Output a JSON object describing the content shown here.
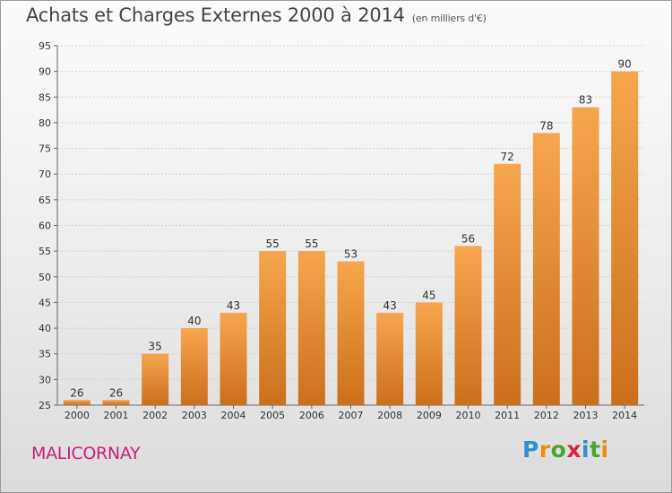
{
  "title": "Achats et Charges Externes 2000 à 2014",
  "subtitle": "(en milliers d'€)",
  "commune": "MALICORNAY",
  "logo": {
    "text": "Proxiti",
    "letters": [
      "P",
      "r",
      "o",
      "x",
      "i",
      "t",
      "i"
    ],
    "colors": [
      "#2f8fd4",
      "#f08a10",
      "#4aa52e",
      "#d6283c",
      "#2f8fd4",
      "#4aa52e",
      "#f08a10"
    ]
  },
  "colors": {
    "bar_top": "#f6a64e",
    "bar_bottom": "#cc6f1c",
    "title": "#444444",
    "commune": "#cc1f7a"
  },
  "chart_data": {
    "type": "bar",
    "categories": [
      "2000",
      "2001",
      "2002",
      "2003",
      "2004",
      "2005",
      "2006",
      "2007",
      "2008",
      "2009",
      "2010",
      "2011",
      "2012",
      "2013",
      "2014"
    ],
    "values": [
      26,
      26,
      35,
      40,
      43,
      55,
      55,
      53,
      43,
      45,
      56,
      72,
      78,
      83,
      90
    ],
    "ylim": [
      25,
      95
    ],
    "yticks": [
      25,
      30,
      35,
      40,
      45,
      50,
      55,
      60,
      65,
      70,
      75,
      80,
      85,
      90,
      95
    ],
    "grid": true,
    "legend": "none"
  }
}
